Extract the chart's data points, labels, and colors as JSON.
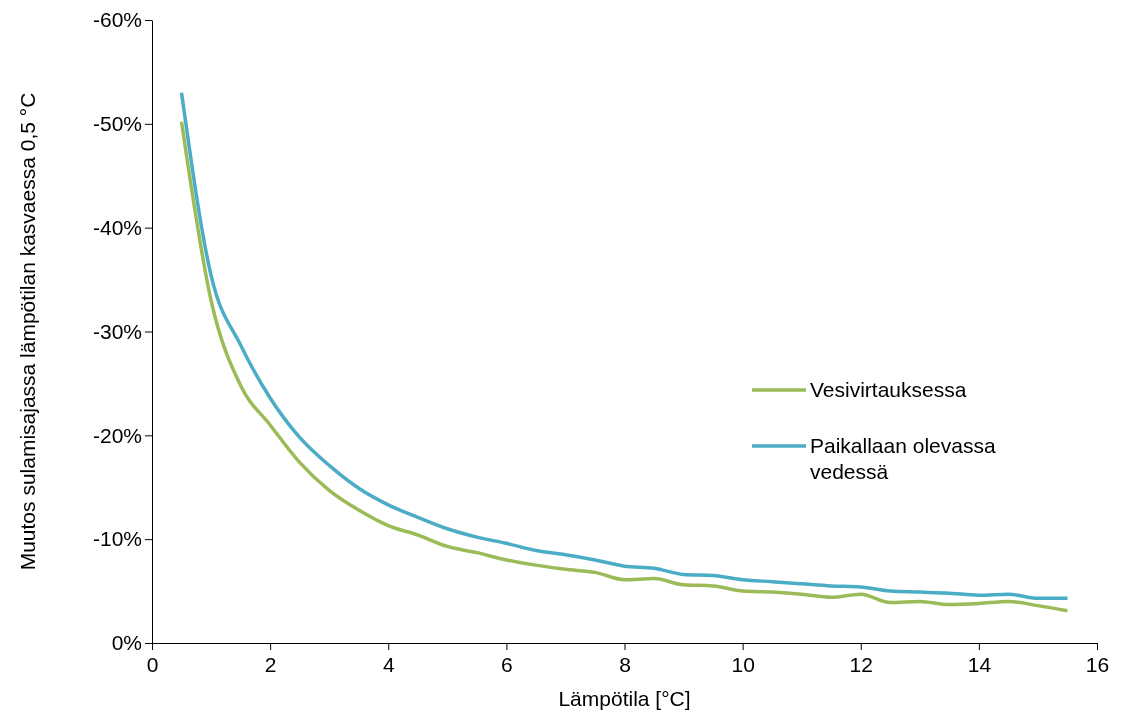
{
  "chart_data": {
    "type": "line",
    "xlabel": "Lämpötila [°C]",
    "ylabel": "Muutos sulamisajassa lämpötilan kasvaessa 0,5 °C",
    "x": [
      0.5,
      1,
      1.5,
      2,
      2.5,
      3,
      3.5,
      4,
      4.5,
      5,
      5.5,
      6,
      6.5,
      7,
      7.5,
      8,
      8.5,
      9,
      9.5,
      10,
      10.5,
      11,
      11.5,
      12,
      12.5,
      13,
      13.5,
      14,
      14.5,
      15,
      15.5
    ],
    "series": [
      {
        "name": "Vesivirtauksessa",
        "color": "#9bbb59",
        "values": [
          -50.2,
          -33,
          -24.8,
          -21,
          -17.4,
          -14.7,
          -12.8,
          -11.3,
          -10.4,
          -9.3,
          -8.7,
          -8.0,
          -7.5,
          -7.1,
          -6.8,
          -6.1,
          -6.2,
          -5.6,
          -5.5,
          -5.0,
          -4.9,
          -4.7,
          -4.4,
          -4.7,
          -3.9,
          -4.0,
          -3.7,
          -3.8,
          -4.0,
          -3.6,
          -3.1
        ]
      },
      {
        "name": "Paikallaan olevassa vedessä",
        "color": "#4bacc6",
        "values": [
          -53,
          -35.4,
          -28.7,
          -23.6,
          -19.8,
          -17.1,
          -14.9,
          -13.3,
          -12.1,
          -11.0,
          -10.2,
          -9.6,
          -8.9,
          -8.5,
          -8.0,
          -7.4,
          -7.2,
          -6.6,
          -6.5,
          -6.1,
          -5.9,
          -5.7,
          -5.5,
          -5.4,
          -5.0,
          -4.9,
          -4.8,
          -4.6,
          -4.7,
          -4.3,
          -4.3
        ]
      }
    ],
    "xlim": [
      0,
      16
    ],
    "xticks": [
      0,
      2,
      4,
      6,
      8,
      10,
      12,
      14,
      16
    ],
    "ylim": [
      0,
      -60
    ],
    "yticks": [
      {
        "value": 0,
        "label": "0%"
      },
      {
        "value": -10,
        "label": "-10%"
      },
      {
        "value": -20,
        "label": "-20%"
      },
      {
        "value": -30,
        "label": "-30%"
      },
      {
        "value": -40,
        "label": "-40%"
      },
      {
        "value": -50,
        "label": "-50%"
      },
      {
        "value": -60,
        "label": "-60%"
      }
    ],
    "grid": false,
    "legend": "right",
    "marker": "none",
    "line_style": "solid"
  }
}
